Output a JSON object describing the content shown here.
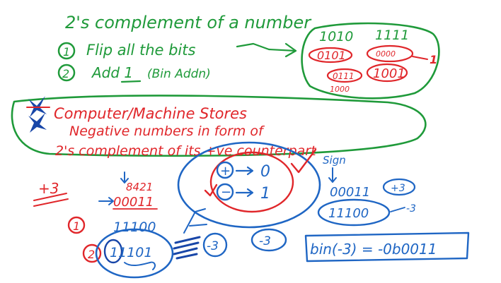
{
  "colors": {
    "green": "#1f9a3a",
    "red": "#e0262a",
    "blue": "#1f66c4",
    "ink_blue": "#1846a8"
  },
  "heading": {
    "title": "2's complement of a number",
    "step1": "Flip all the bits",
    "step2": "Add 1",
    "step2_note": "(Bin Addn)",
    "step1_marker": "1",
    "step2_marker": "2"
  },
  "flip_example": {
    "a": "1010",
    "b": "1111",
    "a_flipped": "0101",
    "b_flipped": "0000",
    "plus_one": "1",
    "c_flipped": "0111",
    "c_result": "1000",
    "b_result": "1001"
  },
  "note": {
    "line1": "Computer/Machine Stores",
    "line2": "Negative numbers in form of",
    "line3": "2's complement of its +ve counterpart"
  },
  "sign_box": {
    "plus_symbol": "+",
    "plus_value": "0",
    "minus_symbol": "−",
    "minus_value": "1",
    "sign_label": "Sign"
  },
  "worked": {
    "value_label": "+3",
    "weights": "8421",
    "binary": "00011",
    "flip_marker": "1",
    "flipped": "11100",
    "add_marker": "2",
    "result": "11101",
    "neg3_a": "-3",
    "neg3_b": "-3"
  },
  "right_example": {
    "pos_binary": "00011",
    "pos_label": "+3",
    "neg_binary": "11100",
    "neg_label": "-3",
    "bin_expr": "bin(-3) = -0b0011"
  }
}
